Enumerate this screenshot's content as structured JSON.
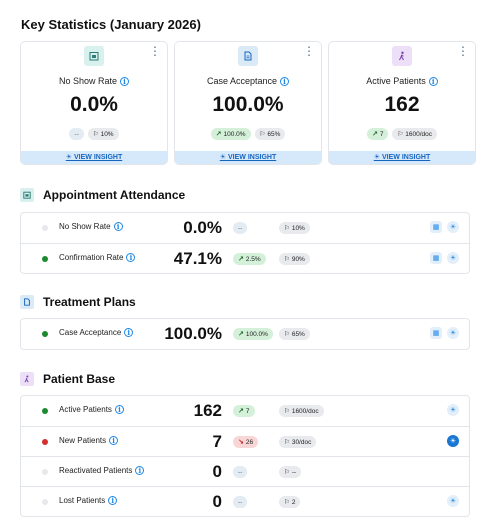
{
  "page_title": "Key Statistics (January 2026)",
  "colors": {
    "accent": "#1e88e5",
    "positive": "#d4f0d9",
    "negative": "#f9d6d6"
  },
  "cards": [
    {
      "icon": "calendar-icon",
      "label": "No Show Rate",
      "value": "0.0%",
      "pill1": "--",
      "pill2": "10%",
      "footer": "VIEW INSIGHT"
    },
    {
      "icon": "document-icon",
      "label": "Case Acceptance",
      "value": "100.0%",
      "pill1": "100.0%",
      "pill2": "65%",
      "footer": "VIEW INSIGHT"
    },
    {
      "icon": "person-walking-icon",
      "label": "Active Patients",
      "value": "162",
      "pill1": "7",
      "pill2": "1600/doc",
      "footer": "VIEW INSIGHT"
    }
  ],
  "sections": {
    "attendance": {
      "title": "Appointment Attendance",
      "rows": [
        {
          "label": "No Show Rate",
          "value": "0.0%",
          "pill1": "--",
          "pill2": "10%"
        },
        {
          "label": "Confirmation Rate",
          "value": "47.1%",
          "pill1": "2.5%",
          "pill2": "90%"
        }
      ]
    },
    "treatment": {
      "title": "Treatment Plans",
      "rows": [
        {
          "label": "Case Acceptance",
          "value": "100.0%",
          "pill1": "100.0%",
          "pill2": "65%"
        }
      ]
    },
    "patient_base": {
      "title": "Patient Base",
      "rows": [
        {
          "label": "Active Patients",
          "value": "162",
          "pill1": "7",
          "pill2": "1600/doc"
        },
        {
          "label": "New Patients",
          "value": "7",
          "pill1": "26",
          "pill2": "30/doc"
        },
        {
          "label": "Reactivated Patients",
          "value": "0",
          "pill1": "--",
          "pill2": "--"
        },
        {
          "label": "Lost Patients",
          "value": "0",
          "pill1": "--",
          "pill2": "2"
        }
      ]
    }
  }
}
